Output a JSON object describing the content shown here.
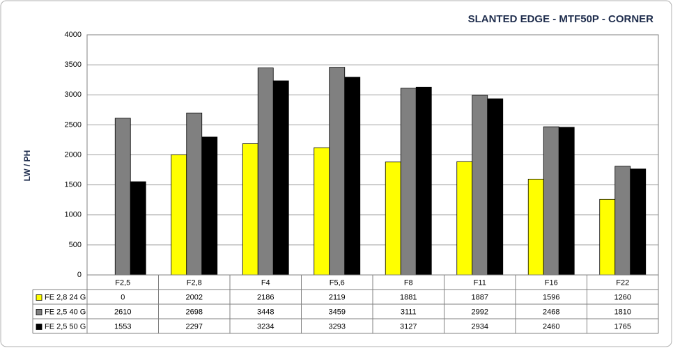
{
  "chart_data": {
    "type": "bar",
    "title": "SLANTED EDGE - MTF50P - CORNER",
    "y_label": "LW / PH",
    "categories": [
      "F2,5",
      "F2,8",
      "F4",
      "F5,6",
      "F8",
      "F11",
      "F16",
      "F22"
    ],
    "series": [
      {
        "name": "FE 2,8 24 G",
        "color": "#ffff00",
        "values": [
          0,
          2002,
          2186,
          2119,
          1881,
          1887,
          1596,
          1260
        ]
      },
      {
        "name": "FE 2,5 40 G",
        "color": "#808080",
        "values": [
          2610,
          2698,
          3448,
          3459,
          3111,
          2992,
          2468,
          1810
        ]
      },
      {
        "name": "FE 2,5 50 G",
        "color": "#000000",
        "values": [
          1553,
          2297,
          3234,
          3293,
          3127,
          2934,
          2460,
          1765
        ]
      }
    ],
    "ylim": [
      0,
      4000
    ],
    "yticks": [
      0,
      500,
      1000,
      1500,
      2000,
      2500,
      3000,
      3500,
      4000
    ],
    "grid": true
  }
}
